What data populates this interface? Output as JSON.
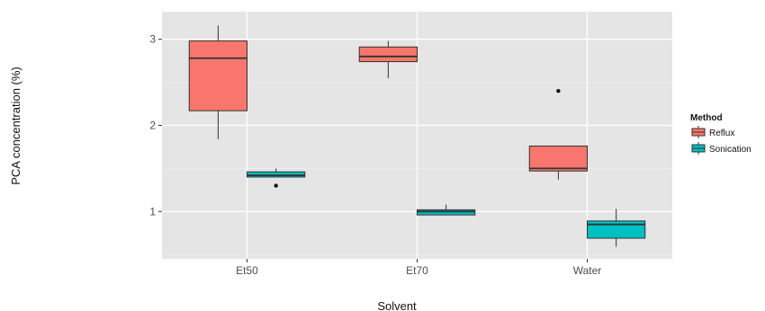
{
  "chart_data": {
    "type": "boxplot",
    "xlabel": "Solvent",
    "ylabel": "PCA concentration (%)",
    "categories": [
      "Et50",
      "Et70",
      "Water"
    ],
    "ylim": [
      0.45,
      3.32
    ],
    "yticks": [
      1,
      2,
      3
    ],
    "grid": true,
    "legend": {
      "title": "Method",
      "position": "right"
    },
    "series": [
      {
        "name": "Reflux",
        "color": "#F8766D",
        "boxes": [
          {
            "category": "Et50",
            "min": 1.84,
            "q1": 2.17,
            "median": 2.78,
            "q3": 2.98,
            "max": 3.16,
            "outliers": []
          },
          {
            "category": "Et70",
            "min": 2.55,
            "q1": 2.74,
            "median": 2.8,
            "q3": 2.91,
            "max": 2.98,
            "outliers": []
          },
          {
            "category": "Water",
            "min": 1.37,
            "q1": 1.47,
            "median": 1.5,
            "q3": 1.76,
            "max": 1.76,
            "outliers": [
              2.4
            ]
          }
        ]
      },
      {
        "name": "Sonication",
        "color": "#00BFC4",
        "boxes": [
          {
            "category": "Et50",
            "min": 1.4,
            "q1": 1.4,
            "median": 1.42,
            "q3": 1.46,
            "max": 1.5,
            "outliers": [
              1.3
            ]
          },
          {
            "category": "Et70",
            "min": 0.96,
            "q1": 0.96,
            "median": 1.0,
            "q3": 1.02,
            "max": 1.08,
            "outliers": []
          },
          {
            "category": "Water",
            "min": 0.59,
            "q1": 0.69,
            "median": 0.85,
            "q3": 0.89,
            "max": 1.03,
            "outliers": []
          }
        ]
      }
    ]
  }
}
